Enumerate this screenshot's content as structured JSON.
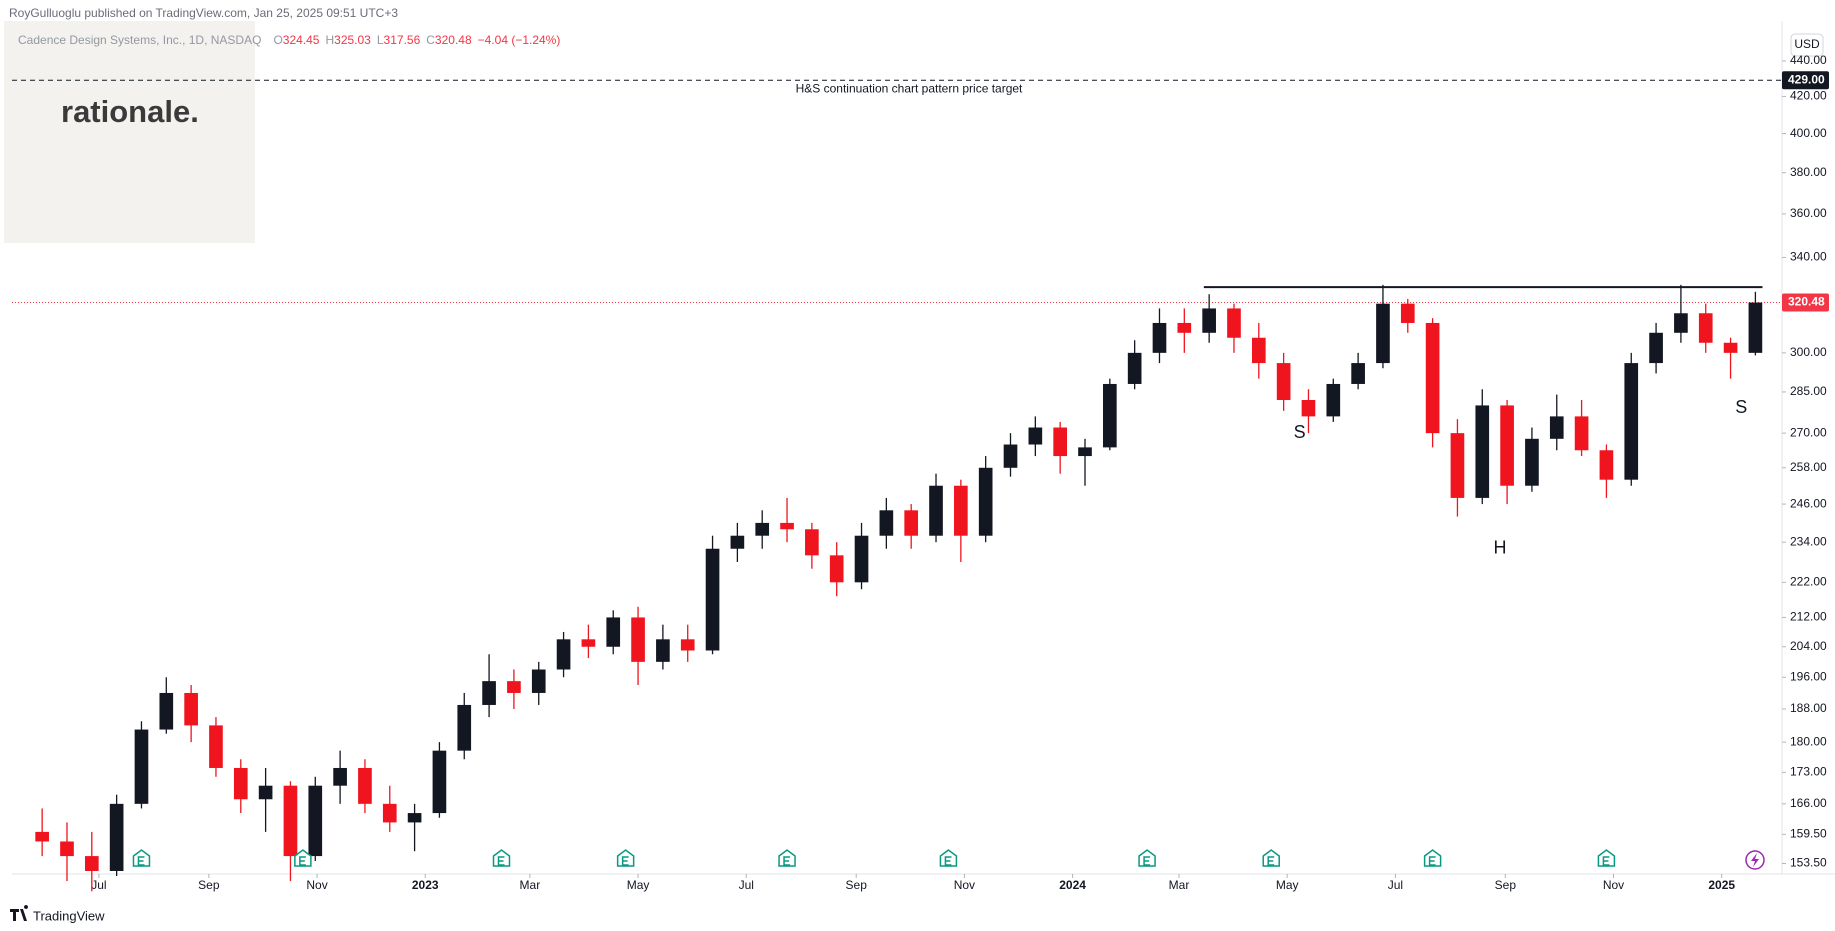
{
  "chart_data": {
    "type": "candlestick",
    "header": "RoyGulluoglu published on TradingView.com, Jan 25, 2025 09:51 UTC+3",
    "symbol": "Cadence Design Systems, Inc., 1D, NASDAQ",
    "legend": [
      {
        "label": "O",
        "value": 324.45
      },
      {
        "label": "H",
        "value": 325.03
      },
      {
        "label": "L",
        "value": 317.56
      },
      {
        "label": "C",
        "value": 320.48
      }
    ],
    "change": "−4.04 (−1.24%)",
    "logo": "rationale.",
    "currency": "USD",
    "brand": "TradingView",
    "up_color": "#131722",
    "down_color": "#f0141e",
    "log_scale": true,
    "grid": false,
    "xlim": [
      "2022-05-13",
      "2025-02-04"
    ],
    "ylim": [
      151.4,
      463.7
    ],
    "yticks": [
      {
        "value": 440,
        "label": "440.00"
      },
      {
        "value": 420,
        "label": "420.00"
      },
      {
        "value": 400,
        "label": "400.00"
      },
      {
        "value": 380,
        "label": "380.00"
      },
      {
        "value": 360,
        "label": "360.00"
      },
      {
        "value": 340,
        "label": "340.00"
      },
      {
        "value": 300,
        "label": "300.00"
      },
      {
        "value": 285,
        "label": "285.00"
      },
      {
        "value": 270,
        "label": "270.00"
      },
      {
        "value": 258,
        "label": "258.00"
      },
      {
        "value": 246,
        "label": "246.00"
      },
      {
        "value": 234,
        "label": "234.00"
      },
      {
        "value": 222,
        "label": "222.00"
      },
      {
        "value": 212,
        "label": "212.00"
      },
      {
        "value": 204,
        "label": "204.00"
      },
      {
        "value": 196,
        "label": "196.00"
      },
      {
        "value": 188,
        "label": "188.00"
      },
      {
        "value": 180,
        "label": "180.00"
      },
      {
        "value": 173,
        "label": "173.00"
      },
      {
        "value": 166,
        "label": "166.00"
      },
      {
        "value": 159.5,
        "label": "159.50"
      },
      {
        "value": 153.5,
        "label": "153.50"
      }
    ],
    "xticks": [
      {
        "value": "2022-07-01",
        "label": "Jul"
      },
      {
        "value": "2022-09-01",
        "label": "Sep"
      },
      {
        "value": "2022-11-01",
        "label": "Nov"
      },
      {
        "value": "2023-01-01",
        "label": "2023"
      },
      {
        "value": "2023-03-01",
        "label": "Mar"
      },
      {
        "value": "2023-05-01",
        "label": "May"
      },
      {
        "value": "2023-07-01",
        "label": "Jul"
      },
      {
        "value": "2023-09-01",
        "label": "Sep"
      },
      {
        "value": "2023-11-01",
        "label": "Nov"
      },
      {
        "value": "2024-01-01",
        "label": "2024"
      },
      {
        "value": "2024-03-01",
        "label": "Mar"
      },
      {
        "value": "2024-05-01",
        "label": "May"
      },
      {
        "value": "2024-07-01",
        "label": "Jul"
      },
      {
        "value": "2024-09-01",
        "label": "Sep"
      },
      {
        "value": "2024-11-01",
        "label": "Nov"
      },
      {
        "value": "2025-01-01",
        "label": "2025"
      }
    ],
    "x": [
      "2022-05-30",
      "2022-06-13",
      "2022-06-27",
      "2022-07-11",
      "2022-07-25",
      "2022-08-08",
      "2022-08-22",
      "2022-09-05",
      "2022-09-19",
      "2022-10-03",
      "2022-10-17",
      "2022-10-31",
      "2022-11-14",
      "2022-11-28",
      "2022-12-12",
      "2022-12-26",
      "2023-01-09",
      "2023-01-23",
      "2023-02-06",
      "2023-02-20",
      "2023-03-06",
      "2023-03-20",
      "2023-04-03",
      "2023-04-17",
      "2023-05-01",
      "2023-05-15",
      "2023-05-29",
      "2023-06-12",
      "2023-06-26",
      "2023-07-10",
      "2023-07-24",
      "2023-08-07",
      "2023-08-21",
      "2023-09-04",
      "2023-09-18",
      "2023-10-02",
      "2023-10-16",
      "2023-10-30",
      "2023-11-13",
      "2023-11-27",
      "2023-12-11",
      "2023-12-25",
      "2024-01-08",
      "2024-01-22",
      "2024-02-05",
      "2024-02-19",
      "2024-03-04",
      "2024-03-18",
      "2024-04-01",
      "2024-04-15",
      "2024-04-29",
      "2024-05-13",
      "2024-05-27",
      "2024-06-10",
      "2024-06-24",
      "2024-07-08",
      "2024-07-22",
      "2024-08-05",
      "2024-08-19",
      "2024-09-02",
      "2024-09-16",
      "2024-09-30",
      "2024-10-14",
      "2024-10-28",
      "2024-11-11",
      "2024-11-25",
      "2024-12-09",
      "2024-12-23",
      "2025-01-06",
      "2025-01-20"
    ],
    "open": [
      160,
      158,
      155,
      152,
      166,
      183,
      192,
      184,
      174,
      167,
      170,
      155,
      170,
      174,
      166,
      162,
      164,
      178,
      189,
      195,
      192,
      198,
      206,
      204,
      212,
      200,
      206,
      203,
      232,
      236,
      240,
      238,
      230,
      222,
      236,
      244,
      236,
      252,
      236,
      258,
      266,
      272,
      262,
      265,
      288,
      300,
      312,
      308,
      318,
      306,
      296,
      282,
      276,
      288,
      296,
      320,
      312,
      270,
      248,
      280,
      252,
      268,
      276,
      264,
      254,
      296,
      308,
      316,
      304,
      300
    ],
    "high": [
      165,
      162,
      160,
      168,
      185,
      196,
      194,
      186,
      176,
      174,
      171,
      172,
      178,
      176,
      170,
      166,
      180,
      192,
      202,
      198,
      200,
      208,
      210,
      214,
      215,
      210,
      210,
      236,
      240,
      244,
      248,
      240,
      234,
      240,
      248,
      246,
      256,
      254,
      262,
      270,
      276,
      274,
      268,
      290,
      305,
      318,
      318,
      324,
      320,
      312,
      300,
      286,
      290,
      300,
      328,
      322,
      314,
      275,
      286,
      282,
      272,
      284,
      282,
      266,
      300,
      312,
      328,
      320,
      306,
      325.03
    ],
    "low": [
      155,
      150,
      148,
      151,
      165,
      182,
      180,
      172,
      164,
      160,
      150,
      154,
      166,
      164,
      160,
      156,
      163,
      176,
      186,
      188,
      189,
      196,
      201,
      202,
      194,
      198,
      200,
      202,
      228,
      232,
      234,
      226,
      218,
      220,
      232,
      232,
      234,
      228,
      234,
      255,
      262,
      256,
      252,
      264,
      286,
      296,
      300,
      304,
      300,
      290,
      278,
      270,
      274,
      286,
      294,
      308,
      265,
      242,
      246,
      246,
      250,
      264,
      262,
      248,
      252,
      292,
      304,
      300,
      290,
      299
    ],
    "close": [
      158,
      155,
      152,
      166,
      183,
      192,
      184,
      174,
      167,
      170,
      155,
      170,
      174,
      166,
      162,
      164,
      178,
      189,
      195,
      192,
      198,
      206,
      204,
      212,
      200,
      206,
      203,
      232,
      236,
      240,
      238,
      230,
      222,
      236,
      244,
      236,
      252,
      236,
      258,
      266,
      272,
      262,
      265,
      288,
      300,
      312,
      308,
      318,
      306,
      296,
      282,
      276,
      288,
      296,
      320,
      312,
      270,
      248,
      280,
      252,
      268,
      276,
      264,
      254,
      296,
      308,
      316,
      304,
      300,
      320.48
    ],
    "last_price": {
      "value": 320.48,
      "label": "320.48"
    },
    "target": {
      "value": 429,
      "label": "429.00",
      "text": "H&S continuation chart pattern price target"
    },
    "neckline": {
      "value": 327,
      "start": "2024-03-15",
      "end": "2025-01-24"
    },
    "pattern_labels": [
      {
        "text": "S",
        "x": "2024-05-08",
        "y": 270
      },
      {
        "text": "H",
        "x": "2024-08-29",
        "y": 232
      },
      {
        "text": "S",
        "x": "2025-01-12",
        "y": 279
      }
    ],
    "earnings": [
      "2022-07-25",
      "2022-10-24",
      "2023-02-13",
      "2023-04-24",
      "2023-07-24",
      "2023-10-23",
      "2024-02-12",
      "2024-04-22",
      "2024-07-22",
      "2024-10-28"
    ]
  }
}
